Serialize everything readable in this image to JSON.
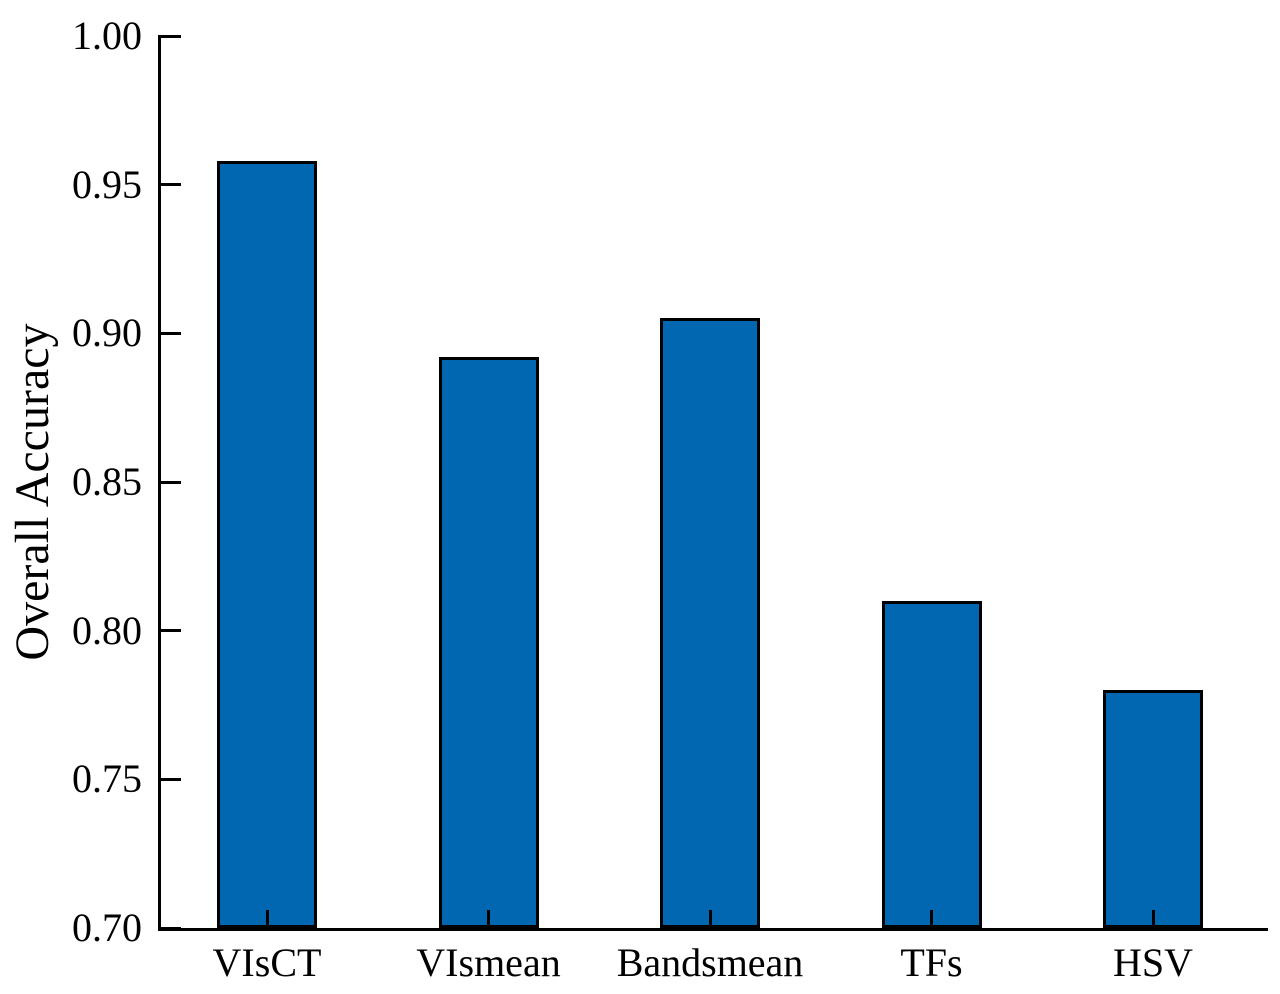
{
  "chart_data": {
    "type": "bar",
    "categories": [
      "VIsCT",
      "VIsmean",
      "Bandsmean",
      "TFs",
      "HSV"
    ],
    "values": [
      0.958,
      0.892,
      0.905,
      0.81,
      0.78
    ],
    "title": "",
    "xlabel": "",
    "ylabel": "Overall Accuracy",
    "ylim": [
      0.7,
      1.0
    ],
    "yticks": [
      0.7,
      0.75,
      0.8,
      0.85,
      0.9,
      0.95,
      1.0
    ],
    "ytick_labels": [
      "0.70",
      "0.75",
      "0.80",
      "0.85",
      "0.90",
      "0.95",
      "1.00"
    ],
    "grid": false,
    "legend": "none",
    "tick_direction": "in",
    "colors": {
      "bar_fill": "#0267B1",
      "bar_edge": "#000000",
      "axis": "#000000",
      "text": "#000000",
      "background": "#FFFFFF"
    }
  }
}
